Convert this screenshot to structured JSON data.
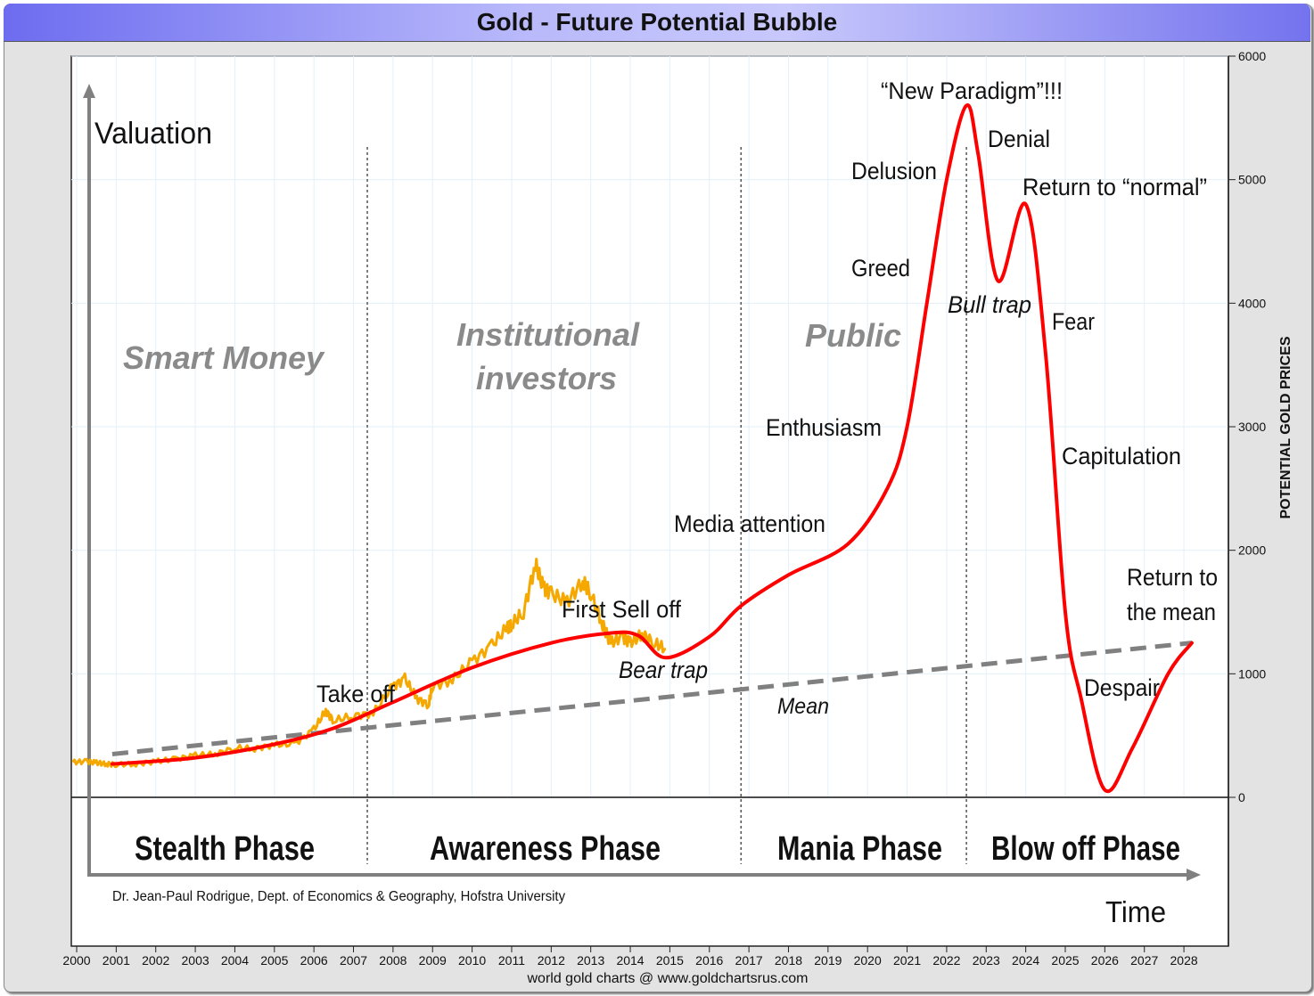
{
  "chart_data": {
    "type": "line",
    "title": "Gold - Future Potential Bubble",
    "ylabel": "POTENTIAL GOLD PRICES",
    "xlabel": "",
    "xlim": [
      2000,
      2028
    ],
    "ylim": [
      0,
      6000
    ],
    "x_ticks": [
      "2000",
      "2001",
      "2002",
      "2003",
      "2004",
      "2005",
      "2006",
      "2007",
      "2008",
      "2009",
      "2010",
      "2011",
      "2012",
      "2013",
      "2014",
      "2015",
      "2016",
      "2017",
      "2018",
      "2019",
      "2020",
      "2021",
      "2022",
      "2023",
      "2024",
      "2025",
      "2026",
      "2027",
      "2028"
    ],
    "y_ticks": [
      "0",
      "1000",
      "2000",
      "3000",
      "4000",
      "5000",
      "6000"
    ],
    "grid": true,
    "series": [
      {
        "role": "actual gold price",
        "color": "#f5a800",
        "x": [
          1999.9,
          2000.25,
          2000.5,
          2000.75,
          2001,
          2001.5,
          2002,
          2002.5,
          2003,
          2003.5,
          2004,
          2004.5,
          2005,
          2005.5,
          2006,
          2006.3,
          2006.5,
          2007,
          2007.5,
          2008,
          2008.3,
          2008.6,
          2008.9,
          2009,
          2009.5,
          2010,
          2010.5,
          2010.9,
          2011,
          2011.3,
          2011.6,
          2011.8,
          2012,
          2012.4,
          2012.8,
          2013,
          2013.3,
          2013.5,
          2013.8,
          2014,
          2014.3,
          2014.6,
          2014.9
        ],
        "y": [
          285,
          290,
          280,
          270,
          265,
          270,
          290,
          310,
          340,
          350,
          400,
          395,
          425,
          430,
          550,
          700,
          620,
          660,
          680,
          900,
          960,
          800,
          750,
          900,
          950,
          1100,
          1230,
          1380,
          1400,
          1500,
          1890,
          1700,
          1650,
          1580,
          1750,
          1650,
          1400,
          1250,
          1300,
          1250,
          1320,
          1250,
          1200
        ]
      },
      {
        "role": "bubble curve",
        "color": "#ff0000",
        "x": [
          2000.9,
          2003,
          2005,
          2006.5,
          2008,
          2010,
          2012,
          2013.5,
          2014.2,
          2014.9,
          2016,
          2016.8,
          2018,
          2019.5,
          2020.5,
          2021,
          2021.5,
          2022,
          2022.5,
          2022.8,
          2023.3,
          2024,
          2024.5,
          2025,
          2025.4,
          2026,
          2026.7,
          2027.6,
          2028.2
        ],
        "y": [
          270,
          320,
          430,
          560,
          770,
          1050,
          1250,
          1330,
          1310,
          1130,
          1300,
          1550,
          1800,
          2050,
          2500,
          3000,
          4000,
          5000,
          5600,
          5200,
          4180,
          4800,
          3600,
          1500,
          800,
          60,
          400,
          1000,
          1250
        ]
      },
      {
        "role": "mean",
        "color": "#808080",
        "style": "dashed",
        "x": [
          2000.9,
          2028.2
        ],
        "y": [
          350,
          1250
        ]
      }
    ],
    "phase_dividers": [
      2007.35,
      2016.8,
      2022.5
    ],
    "annotations": {
      "valuation": "Valuation",
      "time": "Time",
      "smart_money": "Smart Money",
      "institutional_1": "Institutional",
      "institutional_2": "investors",
      "public": "Public",
      "new_paradigm": "“New Paradigm”!!!",
      "denial": "Denial",
      "delusion": "Delusion",
      "return_normal": "Return to “normal”",
      "greed": "Greed",
      "bull_trap": "Bull trap",
      "fear": "Fear",
      "enthusiasm": "Enthusiasm",
      "capitulation": "Capitulation",
      "media": "Media attention",
      "return_mean_1": "Return to",
      "return_mean_2": "the mean",
      "first_selloff": "First Sell off",
      "bear_trap": "Bear trap",
      "take_off": "Take off",
      "despair": "Despair",
      "mean": "Mean"
    },
    "phases": [
      "Stealth Phase",
      "Awareness Phase",
      "Mania Phase",
      "Blow off Phase"
    ],
    "credit": "Dr. Jean-Paul Rodrigue, Dept. of Economics & Geography, Hofstra University",
    "footer": "world gold charts @ www.goldchartsrus.com"
  }
}
